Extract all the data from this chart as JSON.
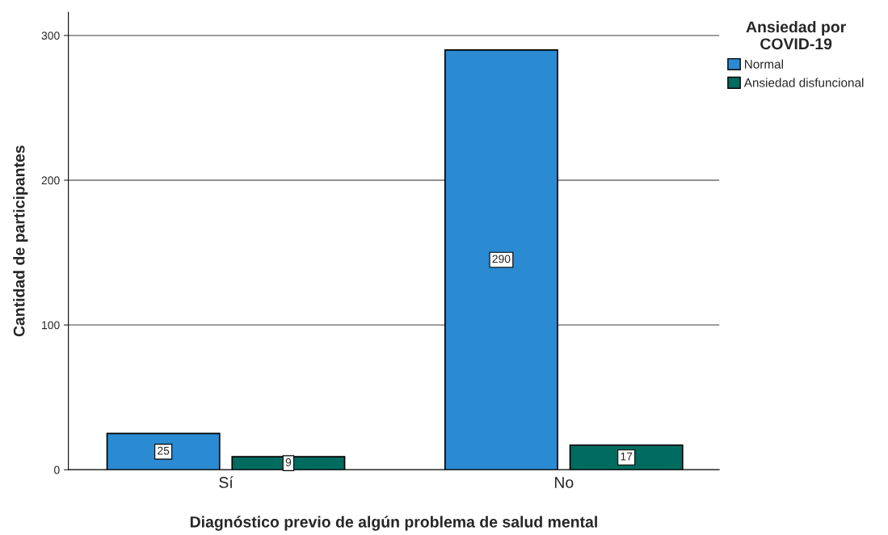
{
  "chart_data": {
    "type": "bar",
    "xlabel": "Diagnóstico previo de algún problema de salud mental",
    "ylabel": "Cantidad de participantes",
    "legend_title": "Ansiedad por\nCOVID-19",
    "categories": [
      "Sí",
      "No"
    ],
    "series": [
      {
        "name": "Normal",
        "color": "#2a8ad2",
        "values": [
          25,
          290
        ]
      },
      {
        "name": "Ansiedad disfuncional",
        "color": "#006b5f",
        "values": [
          9,
          17
        ]
      }
    ],
    "ylim": [
      0,
      316
    ],
    "yticks": [
      0,
      100,
      200,
      300
    ],
    "grid": "y",
    "legend": "top right",
    "data_labels": true
  }
}
